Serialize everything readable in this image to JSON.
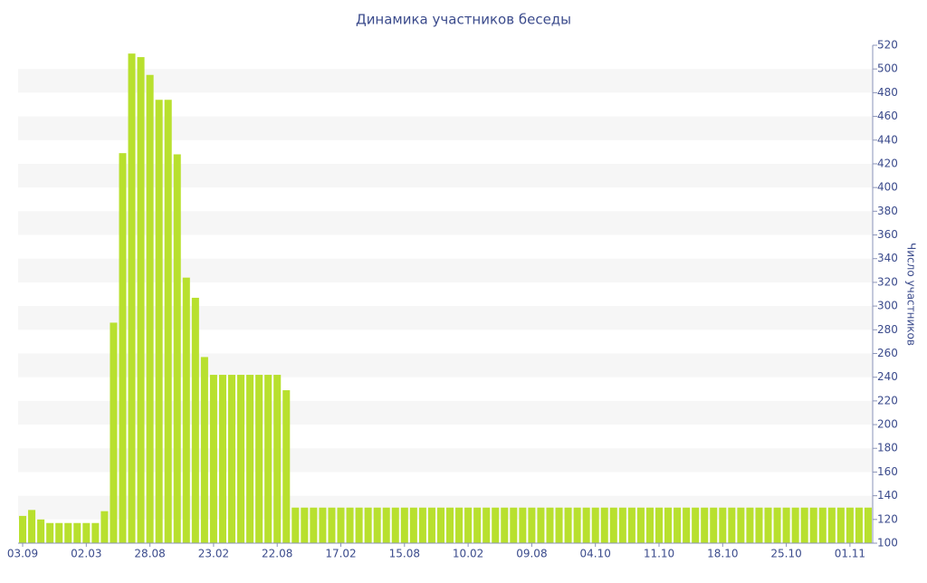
{
  "chart_data": {
    "type": "bar",
    "title": "Динамика участников беседы",
    "y_label": "Число участников",
    "categories": [
      "03.09",
      null,
      null,
      null,
      null,
      null,
      null,
      "02.03",
      null,
      null,
      null,
      null,
      null,
      null,
      "28.08",
      null,
      null,
      null,
      null,
      null,
      null,
      "23.02",
      null,
      null,
      null,
      null,
      null,
      null,
      "22.08",
      null,
      null,
      null,
      null,
      null,
      null,
      "17.02",
      null,
      null,
      null,
      null,
      null,
      null,
      "15.08",
      null,
      null,
      null,
      null,
      null,
      null,
      "10.02",
      null,
      null,
      null,
      null,
      null,
      null,
      "09.08",
      null,
      null,
      null,
      null,
      null,
      null,
      "04.10",
      null,
      null,
      null,
      null,
      null,
      null,
      "11.10",
      null,
      null,
      null,
      null,
      null,
      null,
      "18.10",
      null,
      null,
      null,
      null,
      null,
      null,
      "25.10",
      null,
      null,
      null,
      null,
      null,
      null,
      "01.11",
      null,
      null
    ],
    "values": [
      123,
      128,
      120,
      117,
      117,
      117,
      117,
      117,
      117,
      127,
      286,
      429,
      513,
      510,
      495,
      474,
      474,
      428,
      324,
      307,
      257,
      242,
      242,
      242,
      242,
      242,
      242,
      242,
      242,
      229,
      130,
      130,
      130,
      130,
      130,
      130,
      130,
      130,
      130,
      130,
      130,
      130,
      130,
      130,
      130,
      130,
      130,
      130,
      130,
      130,
      130,
      130,
      130,
      130,
      130,
      130,
      130,
      130,
      130,
      130,
      130,
      130,
      130,
      130,
      130,
      130,
      130,
      130,
      130,
      130,
      130,
      130,
      130,
      130,
      130,
      130,
      130,
      130,
      130,
      130,
      130,
      130,
      130,
      130,
      130,
      130,
      130,
      130,
      130,
      130,
      130,
      130,
      130,
      130
    ],
    "color": "#b8e02e",
    "ylim": [
      100,
      520
    ],
    "yticks": [
      100,
      120,
      140,
      160,
      180,
      200,
      220,
      240,
      260,
      280,
      300,
      320,
      340,
      360,
      380,
      400,
      420,
      440,
      460,
      480,
      500,
      520
    ],
    "grid": true
  }
}
